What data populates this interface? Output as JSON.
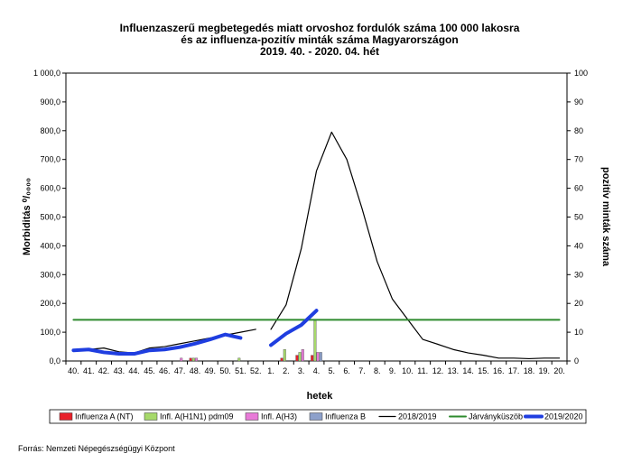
{
  "chart_data": {
    "type": "bar",
    "title_lines": [
      "Influenzaszerű megbetegedés miatt orvoshoz fordulók száma 100 000 lakosra",
      "és az influenza-pozitív minták száma Magyarországon",
      "2019. 40. - 2020. 04. hét"
    ],
    "xlabel": "hetek",
    "ylabel_left": "Morbiditás ⁰/₀₀₀₀",
    "ylabel_right": "pozitív minták száma",
    "ylim_left": [
      0,
      1000
    ],
    "ylim_right": [
      0,
      100
    ],
    "yticks_left": [
      "0,0",
      "100,0",
      "200,0",
      "300,0",
      "400,0",
      "500,0",
      "600,0",
      "700,0",
      "800,0",
      "900,0",
      "1 000,0"
    ],
    "yticks_right": [
      "0",
      "10",
      "20",
      "30",
      "40",
      "50",
      "60",
      "70",
      "80",
      "90",
      "100"
    ],
    "categories": [
      "40.",
      "41.",
      "42.",
      "43.",
      "44.",
      "45.",
      "46.",
      "47.",
      "48.",
      "49.",
      "50.",
      "51.",
      "52.",
      "1.",
      "2.",
      "3.",
      "4.",
      "5.",
      "6.",
      "7.",
      "8.",
      "9.",
      "10.",
      "11.",
      "12.",
      "13.",
      "14.",
      "15.",
      "16.",
      "17.",
      "18.",
      "19.",
      "20."
    ],
    "bar_series": [
      {
        "name": "Influenza A (NT)",
        "color": "#e8202a",
        "values": [
          0,
          0,
          0,
          0,
          0,
          0,
          0,
          0,
          1,
          0,
          0,
          0,
          0,
          0,
          1,
          2,
          2,
          0,
          0,
          0,
          0,
          0,
          0,
          0,
          0,
          0,
          0,
          0,
          0,
          0,
          0,
          0,
          0
        ]
      },
      {
        "name": "Infl. A(H1N1) pdm09",
        "color": "#a6d96a",
        "values": [
          0,
          0,
          0,
          0,
          0,
          0,
          0,
          0,
          1,
          0,
          0,
          1,
          0,
          0,
          4,
          3,
          14,
          0,
          0,
          0,
          0,
          0,
          0,
          0,
          0,
          0,
          0,
          0,
          0,
          0,
          0,
          0,
          0
        ]
      },
      {
        "name": "Infl. A(H3)",
        "color": "#e87ad8",
        "values": [
          0,
          0,
          0,
          0,
          0,
          0,
          0,
          1,
          1,
          0,
          0,
          0,
          0,
          0,
          0,
          4,
          3,
          0,
          0,
          0,
          0,
          0,
          0,
          0,
          0,
          0,
          0,
          0,
          0,
          0,
          0,
          0,
          0
        ]
      },
      {
        "name": "Influenza B",
        "color": "#8da0cb",
        "values": [
          0,
          0,
          0,
          0,
          0,
          0,
          0,
          0,
          0,
          0,
          0,
          0,
          0,
          0,
          0,
          0,
          3,
          0,
          0,
          0,
          0,
          0,
          0,
          0,
          0,
          0,
          0,
          0,
          0,
          0,
          0,
          0,
          0
        ]
      }
    ],
    "line_series": [
      {
        "name": "2018/2019",
        "color": "#000000",
        "width": 1.2,
        "segments": [
          [
            35,
            40,
            45,
            32,
            28,
            45,
            50,
            60,
            70,
            80,
            90,
            100,
            110
          ],
          [
            110,
            195,
            390,
            660,
            795,
            700,
            530,
            345,
            215,
            145,
            75,
            58,
            40,
            28,
            20,
            10,
            10,
            8,
            10,
            10
          ]
        ],
        "segment_start": [
          0,
          13
        ]
      },
      {
        "name": "Járványküszöb",
        "color": "#2e8b2e",
        "width": 2,
        "values": [
          143,
          143,
          143,
          143,
          143,
          143,
          143,
          143,
          143,
          143,
          143,
          143,
          143,
          143,
          143,
          143,
          143,
          143,
          143,
          143,
          143,
          143,
          143,
          143,
          143,
          143,
          143,
          143,
          143,
          143,
          143,
          143,
          143
        ]
      },
      {
        "name": "2019/2020",
        "color": "#1f3ee0",
        "width": 4,
        "segments": [
          [
            37,
            40,
            30,
            25,
            25,
            37,
            40,
            48,
            60,
            75,
            92,
            80
          ],
          [
            55,
            95,
            125,
            175
          ]
        ],
        "segment_start": [
          0,
          13
        ]
      }
    ],
    "legend_order": [
      "Influenza A (NT)",
      "Infl. A(H1N1) pdm09",
      "Infl. A(H3)",
      "Influenza B",
      "2018/2019",
      "Járványküszöb",
      "2019/2020"
    ],
    "legend_position": "bottom",
    "grid": false
  },
  "source": "Forrás: Nemzeti Népegészségügyi Központ"
}
